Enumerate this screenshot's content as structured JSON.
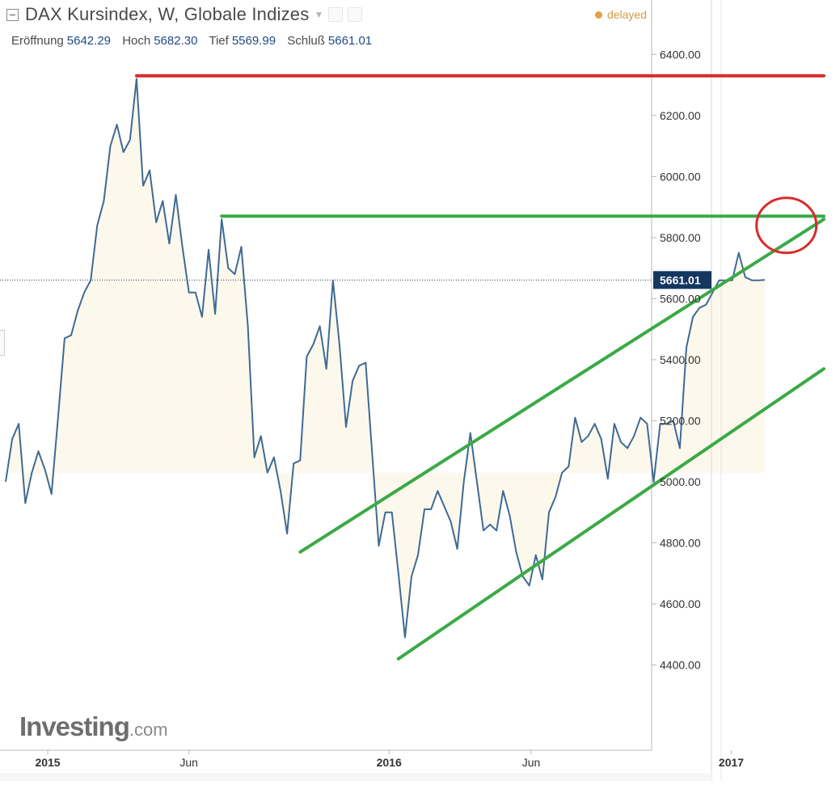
{
  "header": {
    "title": "DAX Kursindex, W, Globale Indizes",
    "status": "delayed",
    "ohlc": [
      {
        "label": "Eröffnung",
        "value": "5642.29"
      },
      {
        "label": "Hoch",
        "value": "5682.30"
      },
      {
        "label": "Tief",
        "value": "5569.99"
      },
      {
        "label": "Schluß",
        "value": "5661.01"
      }
    ]
  },
  "watermark": {
    "brand": "Investing",
    "suffix": ".com"
  },
  "colors": {
    "price_line": "#3f6a93",
    "area_fill": "#fdf8ec",
    "resistance": "#d92b2b",
    "trend": "#3aaa46",
    "highlight_circle": "#d92b2b",
    "last_price_badge": "#14375f"
  },
  "chart_data": {
    "type": "line",
    "title": "DAX Kursindex, W, Globale Indizes",
    "xlabel": "",
    "ylabel": "",
    "ylim": [
      4200,
      6520
    ],
    "xlim": [
      "2014-11-17",
      "2017-04-10"
    ],
    "y_ticks": [
      "4400.00",
      "4600.00",
      "4800.00",
      "5000.00",
      "5200.00",
      "5400.00",
      "5600.00",
      "5800.00",
      "6000.00",
      "6200.00",
      "6400.00"
    ],
    "x_ticks": [
      {
        "date": "2015-01-01",
        "label": "2015",
        "bold": true
      },
      {
        "date": "2015-06-01",
        "label": "Jun",
        "bold": false
      },
      {
        "date": "2016-01-01",
        "label": "2016",
        "bold": true
      },
      {
        "date": "2016-06-01",
        "label": "Jun",
        "bold": false
      },
      {
        "date": "2017-01-01",
        "label": "2017",
        "bold": true
      }
    ],
    "grid": false,
    "last_price": "5661.01",
    "series": [
      {
        "x": [
          "2014-11-17",
          "2014-11-24",
          "2014-12-01",
          "2014-12-08",
          "2014-12-15",
          "2014-12-22",
          "2014-12-29",
          "2015-01-05",
          "2015-01-12",
          "2015-01-19",
          "2015-01-26",
          "2015-02-02",
          "2015-02-09",
          "2015-02-16",
          "2015-02-23",
          "2015-03-02",
          "2015-03-09",
          "2015-03-16",
          "2015-03-23",
          "2015-03-30",
          "2015-04-06",
          "2015-04-13",
          "2015-04-20",
          "2015-04-27",
          "2015-05-04",
          "2015-05-11",
          "2015-05-18",
          "2015-05-25",
          "2015-06-01",
          "2015-06-08",
          "2015-06-15",
          "2015-06-22",
          "2015-06-29",
          "2015-07-06",
          "2015-07-13",
          "2015-07-20",
          "2015-07-27",
          "2015-08-03",
          "2015-08-10",
          "2015-08-17",
          "2015-08-24",
          "2015-08-31",
          "2015-09-07",
          "2015-09-14",
          "2015-09-21",
          "2015-09-28",
          "2015-10-05",
          "2015-10-12",
          "2015-10-19",
          "2015-10-26",
          "2015-11-02",
          "2015-11-09",
          "2015-11-16",
          "2015-11-23",
          "2015-11-30",
          "2015-12-07",
          "2015-12-14",
          "2015-12-21",
          "2015-12-28",
          "2016-01-04",
          "2016-01-11",
          "2016-01-18",
          "2016-01-25",
          "2016-02-01",
          "2016-02-08",
          "2016-02-15",
          "2016-02-22",
          "2016-02-29",
          "2016-03-07",
          "2016-03-14",
          "2016-03-21",
          "2016-03-28",
          "2016-04-04",
          "2016-04-11",
          "2016-04-18",
          "2016-04-25",
          "2016-05-02",
          "2016-05-09",
          "2016-05-16",
          "2016-05-23",
          "2016-05-30",
          "2016-06-06",
          "2016-06-13",
          "2016-06-20",
          "2016-06-27",
          "2016-07-04",
          "2016-07-11",
          "2016-07-18",
          "2016-07-25",
          "2016-08-01",
          "2016-08-08",
          "2016-08-15",
          "2016-08-22",
          "2016-08-29",
          "2016-09-05",
          "2016-09-12",
          "2016-09-19",
          "2016-09-26",
          "2016-10-03",
          "2016-10-10",
          "2016-10-17",
          "2016-10-24",
          "2016-10-31",
          "2016-11-07",
          "2016-11-14",
          "2016-11-21",
          "2016-11-28",
          "2016-12-05",
          "2016-12-12",
          "2016-12-19",
          "2016-12-26",
          "2017-01-02",
          "2017-01-09",
          "2017-01-16",
          "2017-01-23",
          "2017-01-30",
          "2017-02-06"
        ],
        "y": [
          5000,
          5140,
          5190,
          4930,
          5030,
          5100,
          5040,
          4960,
          5210,
          5470,
          5480,
          5560,
          5620,
          5660,
          5840,
          5920,
          6100,
          6170,
          6080,
          6120,
          6320,
          5970,
          6020,
          5850,
          5920,
          5780,
          5940,
          5770,
          5620,
          5620,
          5540,
          5760,
          5550,
          5860,
          5700,
          5680,
          5770,
          5510,
          5080,
          5150,
          5030,
          5080,
          4970,
          4830,
          5060,
          5070,
          5410,
          5450,
          5510,
          5370,
          5660,
          5450,
          5180,
          5330,
          5380,
          5390,
          5090,
          4790,
          4900,
          4900,
          4700,
          4490,
          4690,
          4760,
          4910,
          4910,
          4970,
          4920,
          4870,
          4780,
          5000,
          5160,
          5000,
          4840,
          4860,
          4840,
          4970,
          4890,
          4770,
          4690,
          4660,
          4760,
          4680,
          4900,
          4950,
          5030,
          5050,
          5210,
          5130,
          5150,
          5190,
          5140,
          5010,
          5190,
          5130,
          5110,
          5150,
          5210,
          5190,
          5000,
          5190,
          5190,
          5200,
          5110,
          5440,
          5540,
          5570,
          5580,
          5620,
          5660,
          5660,
          5660,
          5750,
          5670,
          5660,
          5660,
          5661
        ]
      }
    ],
    "annotations": {
      "resistance_line": {
        "x": [
          "2015-04-06",
          "2017-04-10"
        ],
        "y": [
          6330,
          6330
        ]
      },
      "support_horizontal": {
        "x": [
          "2015-07-06",
          "2017-04-10"
        ],
        "y": [
          5870,
          5870
        ]
      },
      "channel_upper": {
        "x": [
          "2015-09-28",
          "2017-04-10"
        ],
        "y": [
          4770,
          5860
        ]
      },
      "channel_lower": {
        "x": [
          "2016-01-11",
          "2017-04-10"
        ],
        "y": [
          4420,
          5370
        ]
      },
      "circle": {
        "x": "2017-03-01",
        "y": 5840
      }
    }
  }
}
